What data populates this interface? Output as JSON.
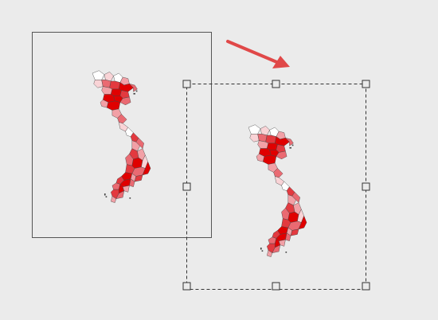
{
  "canvas": {
    "background": "#ebebeb"
  },
  "original_frame": {
    "state": "original-position",
    "stroke": "#555555"
  },
  "moved_frame": {
    "state": "moving-selected",
    "stroke": "#333333",
    "handle_fill": "#ebebeb",
    "handle_count": 8
  },
  "move_arrow": {
    "icon": "arrow-right-down-icon",
    "color": "#e04848"
  },
  "map": {
    "subject": "vietnam-provinces-choropleth",
    "palette": [
      "#ffffff",
      "#f9d3d6",
      "#f2a0a6",
      "#ea6a72",
      "#e3393f",
      "#e00000"
    ],
    "outline": "#444444"
  }
}
